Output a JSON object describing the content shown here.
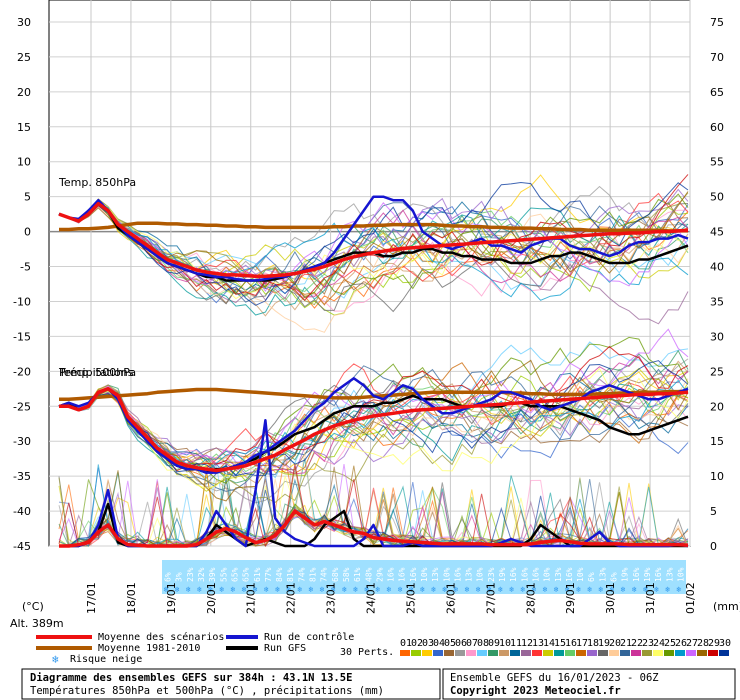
{
  "chart_data": {
    "type": "line",
    "title": "Diagramme des ensembles GEFS sur 384h : 43.1N 13.5E",
    "subtitle": "Températures 850hPa et 500hPa (°C) , précipitations (mm)",
    "left_axis": {
      "unit": "(°C)",
      "min": -45,
      "max": 30,
      "ticks": [
        "30",
        "25",
        "20",
        "15",
        "10",
        "5",
        "0",
        "-5",
        "-10",
        "-15",
        "-20",
        "-25",
        "-30",
        "-35",
        "-40",
        "-45"
      ]
    },
    "right_axis": {
      "unit": "(mm)",
      "min": 0,
      "max": 75,
      "ticks": [
        "75",
        "70",
        "65",
        "60",
        "55",
        "50",
        "45",
        "40",
        "35",
        "30",
        "25",
        "20",
        "15",
        "10",
        "5",
        "0"
      ]
    },
    "altitude": "Alt. 389m",
    "x_axis": {
      "start_hours_before_first_label": 0,
      "dates": [
        "17/01",
        "18/01",
        "19/01",
        "20/01",
        "21/01",
        "22/01",
        "23/01",
        "24/01",
        "25/01",
        "26/01",
        "27/01",
        "28/01",
        "29/01",
        "30/01",
        "31/01",
        "01/02"
      ]
    },
    "annotations": {
      "t850": "Temp. 850hPa",
      "t500": "Temp. 500hPa",
      "precip": "Précipitations"
    },
    "snow_risk_percent": [
      "6%",
      "3%",
      "23%",
      "32%",
      "39%",
      "55%",
      "65%",
      "65%",
      "61%",
      "77%",
      "84%",
      "81%",
      "74%",
      "81%",
      "74%",
      "68%",
      "58%",
      "61%",
      "48%",
      "29%",
      "16%",
      "16%",
      "16%",
      "10%",
      "13%",
      "10%",
      "16%",
      "13%",
      "10%",
      "23%",
      "19%",
      "16%",
      "16%",
      "16%",
      "10%",
      "13%",
      "16%",
      "10%",
      "6%",
      "13%",
      "6%",
      "19%",
      "16%",
      "19%",
      "16%",
      "13%",
      "10%"
    ],
    "series": [
      {
        "name": "Moyenne des scénarios",
        "color": "#ee1111",
        "t850": [
          2.5,
          2,
          1.5,
          2.5,
          4,
          3,
          1,
          0,
          -1,
          -2,
          -3,
          -4,
          -4.5,
          -5,
          -5.5,
          -5.8,
          -6,
          -6.2,
          -6.2,
          -6.3,
          -6.4,
          -6.4,
          -6.3,
          -6.2,
          -6,
          -5.7,
          -5.4,
          -5,
          -4.5,
          -4,
          -3.6,
          -3.3,
          -3,
          -2.8,
          -2.6,
          -2.4,
          -2.3,
          -2.2,
          -2.1,
          -2,
          -1.9,
          -1.8,
          -1.7,
          -1.6,
          -1.5,
          -1.4,
          -1.3,
          -1.2,
          -1.1,
          -1,
          -0.9,
          -0.8,
          -0.7,
          -0.6,
          -0.5,
          -0.4,
          -0.3,
          -0.3,
          -0.2,
          -0.2,
          -0.1,
          0,
          0,
          0.1,
          0.2
        ],
        "t500": [
          -25,
          -25,
          -25.5,
          -25,
          -23,
          -22.5,
          -23.5,
          -26.5,
          -28,
          -29.5,
          -31,
          -32,
          -33,
          -33.5,
          -33.8,
          -34,
          -34.2,
          -34,
          -33.8,
          -33.5,
          -33,
          -32.5,
          -32,
          -31.2,
          -30.5,
          -29.8,
          -29,
          -28.4,
          -27.8,
          -27.4,
          -27,
          -26.7,
          -26.4,
          -26.2,
          -26,
          -25.8,
          -25.6,
          -25.5,
          -25.4,
          -25.3,
          -25.2,
          -25.1,
          -25,
          -24.9,
          -24.8,
          -24.7,
          -24.6,
          -24.5,
          -24.4,
          -24.3,
          -24.2,
          -24.1,
          -24,
          -23.9,
          -23.8,
          -23.7,
          -23.6,
          -23.5,
          -23.4,
          -23.3,
          -23.3,
          -23.2,
          -23.2,
          -23.1,
          -23
        ],
        "precip_mm": [
          0,
          0,
          0.2,
          0.5,
          2,
          3,
          1,
          0.2,
          0.1,
          0,
          0,
          0,
          0,
          0,
          0.2,
          1,
          2,
          2.5,
          2,
          1.2,
          0.5,
          0.8,
          1.5,
          3,
          5,
          4,
          3,
          3.5,
          3,
          2.5,
          2,
          1.8,
          1.2,
          1,
          0.8,
          0.7,
          0.6,
          0.5,
          0.4,
          0.3,
          0.3,
          0.3,
          0.3,
          0.3,
          0.2,
          0.2,
          0.2,
          0.2,
          0.3,
          0.5,
          0.7,
          0.8,
          0.6,
          0.4,
          0.3,
          0.3,
          0.3,
          0.3,
          0.2,
          0.2,
          0.2,
          0.2,
          0.2,
          0.2,
          0.1
        ]
      },
      {
        "name": "Moyenne 1981-2010",
        "color": "#b05a00",
        "t850": [
          0.3,
          0.3,
          0.4,
          0.4,
          0.5,
          0.6,
          0.8,
          1,
          1.2,
          1.2,
          1.2,
          1.1,
          1.1,
          1,
          1,
          0.9,
          0.9,
          0.8,
          0.8,
          0.7,
          0.7,
          0.6,
          0.6,
          0.6,
          0.6,
          0.6,
          0.6,
          0.6,
          0.7,
          0.7,
          0.8,
          0.8,
          0.9,
          0.9,
          1,
          1,
          1,
          1,
          1,
          0.9,
          0.8,
          0.8,
          0.7,
          0.7,
          0.6,
          0.6,
          0.5,
          0.5,
          0.5,
          0.4,
          0.4,
          0.3,
          0.3,
          0.3,
          0.2,
          0.2,
          0.2,
          0.2,
          0.2,
          0.2,
          0.2,
          0.2,
          0.1,
          0.1,
          0.1
        ],
        "t500": [
          -24,
          -24,
          -23.9,
          -23.8,
          -23.7,
          -23.6,
          -23.5,
          -23.4,
          -23.3,
          -23.2,
          -23,
          -22.9,
          -22.8,
          -22.7,
          -22.6,
          -22.6,
          -22.6,
          -22.7,
          -22.8,
          -22.9,
          -23,
          -23.1,
          -23.2,
          -23.3,
          -23.4,
          -23.5,
          -23.6,
          -23.7,
          -23.8,
          -23.8,
          -23.8,
          -23.7,
          -23.6,
          -23.5,
          -23.4,
          -23.3,
          -23.2,
          -23.1,
          -23,
          -23,
          -23,
          -23,
          -23,
          -23,
          -23,
          -23,
          -23.1,
          -23.1,
          -23.2,
          -23.2,
          -23.3,
          -23.3,
          -23.3,
          -23.3,
          -23.3,
          -23.2,
          -23.2,
          -23.1,
          -23.1,
          -23,
          -23,
          -23,
          -22.9,
          -22.9,
          -22.8
        ],
        "precip_mm": []
      },
      {
        "name": "Run de contrôle",
        "color": "#1515d0",
        "t850": [
          2.5,
          2,
          1.8,
          3,
          4.5,
          3,
          1,
          -0.5,
          -1.5,
          -2.5,
          -3.5,
          -4.5,
          -5,
          -5.5,
          -6,
          -6.2,
          -6.5,
          -6.5,
          -6.8,
          -7,
          -7,
          -6.8,
          -6.5,
          -6.5,
          -6,
          -5.5,
          -5,
          -4.5,
          -3,
          -1,
          1,
          3,
          5,
          5,
          4.5,
          4.5,
          3,
          0,
          -1,
          -2,
          -2.5,
          -2,
          -1.5,
          -1,
          -2,
          -2,
          -2.5,
          -3,
          -2,
          -1.5,
          -1,
          -1,
          -2,
          -2.5,
          -2.5,
          -3,
          -3.5,
          -3,
          -2,
          -1.5,
          -1.5,
          -1,
          -1,
          -0.5,
          -1
        ],
        "t500": [
          -25,
          -24.5,
          -25,
          -24.5,
          -23,
          -22.5,
          -24,
          -27,
          -28.5,
          -30,
          -31.5,
          -32.5,
          -33.5,
          -34,
          -34,
          -34.5,
          -34.5,
          -34,
          -33.5,
          -33,
          -32,
          -31.5,
          -30.5,
          -29.5,
          -28.5,
          -27,
          -25.5,
          -24.5,
          -23,
          -22,
          -21,
          -22,
          -23.5,
          -24,
          -23,
          -22,
          -22.5,
          -24,
          -25,
          -26,
          -26,
          -25.5,
          -25,
          -24.5,
          -24,
          -23,
          -23,
          -23.5,
          -24,
          -25,
          -25.5,
          -25,
          -24.5,
          -24,
          -23,
          -22.5,
          -22,
          -22.5,
          -23,
          -23.5,
          -24,
          -24,
          -23.5,
          -23,
          -22.5
        ],
        "precip_mm": [
          0,
          0,
          0,
          0.5,
          3,
          8,
          1,
          0,
          0,
          0,
          0,
          0,
          0,
          0,
          0,
          2,
          5,
          3,
          1,
          0,
          8,
          18,
          4,
          2,
          1,
          0.5,
          0,
          0,
          0,
          0,
          0,
          1,
          3,
          0,
          0,
          0,
          0.5,
          0,
          0,
          0,
          0,
          0,
          0,
          0,
          0,
          0.5,
          1,
          0.5,
          0,
          0,
          0,
          0,
          0,
          0,
          1,
          2,
          0.5,
          0,
          0,
          0,
          0,
          0,
          0,
          0.2,
          0
        ]
      },
      {
        "name": "Run GFS",
        "color": "#000000",
        "t850": [
          2.5,
          2,
          1.5,
          3,
          4,
          3,
          0.5,
          -0.5,
          -1.5,
          -2.5,
          -3.5,
          -4.5,
          -5,
          -5.5,
          -6,
          -6.5,
          -6.5,
          -7,
          -7,
          -7,
          -7,
          -7,
          -6.8,
          -6.5,
          -6,
          -5.5,
          -5,
          -4.5,
          -4,
          -3.5,
          -3,
          -3,
          -3,
          -3.5,
          -3.5,
          -3,
          -3,
          -2.5,
          -2.5,
          -3,
          -3,
          -3.5,
          -3.5,
          -4,
          -4,
          -4,
          -4.5,
          -4.5,
          -4.5,
          -4,
          -3.5,
          -3.5,
          -3,
          -3,
          -3.5,
          -4,
          -4.5,
          -4.5,
          -4.5,
          -4,
          -4,
          -3.5,
          -3,
          -2.5,
          -2
        ],
        "t500": [
          -25,
          -24.5,
          -25.5,
          -25,
          -23,
          -22.5,
          -23.5,
          -27,
          -28.5,
          -30,
          -31.5,
          -32.5,
          -33.5,
          -34,
          -34,
          -34.5,
          -34,
          -34,
          -33.5,
          -33,
          -32.5,
          -31.5,
          -31,
          -30,
          -29,
          -28.5,
          -28,
          -27,
          -26,
          -25.5,
          -25,
          -25,
          -25,
          -24.5,
          -24.5,
          -24,
          -23.5,
          -24,
          -24,
          -24,
          -24.5,
          -25,
          -25,
          -25,
          -25,
          -25,
          -24.5,
          -24.5,
          -25,
          -25,
          -25,
          -25,
          -25.5,
          -26,
          -26.5,
          -27,
          -28,
          -28.5,
          -29,
          -29,
          -28.5,
          -28,
          -27.5,
          -27,
          -26.5
        ],
        "precip_mm": [
          0,
          0,
          0,
          0.5,
          2,
          6,
          0.5,
          0,
          0,
          0,
          0,
          0,
          0,
          0,
          0,
          1,
          3,
          2,
          1,
          0,
          0.5,
          1,
          0.5,
          0,
          0,
          0,
          1,
          3,
          4,
          5,
          1,
          0,
          0,
          0,
          0,
          0,
          0,
          0,
          0,
          0,
          0,
          0,
          0,
          0,
          0,
          0,
          0,
          0,
          1,
          3,
          2,
          1,
          0,
          0,
          0,
          0,
          0,
          0,
          0,
          0,
          0,
          0,
          0,
          0,
          0
        ]
      }
    ],
    "legend": {
      "entries": [
        "Moyenne des scénarios",
        "Run de contrôle",
        "Moyenne 1981-2010",
        "Run GFS",
        "Risque neige"
      ],
      "perts_label": "30 Perts.",
      "perts": [
        "01",
        "02",
        "03",
        "04",
        "05",
        "06",
        "07",
        "08",
        "09",
        "10",
        "11",
        "12",
        "13",
        "14",
        "15",
        "16",
        "17",
        "18",
        "19",
        "20",
        "21",
        "22",
        "23",
        "24",
        "25",
        "26",
        "27",
        "28",
        "29",
        "30"
      ],
      "pert_colors": [
        "#ff6600",
        "#99cc00",
        "#ffcc00",
        "#3366cc",
        "#996633",
        "#999999",
        "#ff99cc",
        "#66ccff",
        "#339966",
        "#cc9966",
        "#006699",
        "#996699",
        "#ff3333",
        "#cccc00",
        "#009999",
        "#66cc66",
        "#cc6600",
        "#9966cc",
        "#666666",
        "#ffcc99",
        "#336699",
        "#cc3399",
        "#999933",
        "#ffff66",
        "#669900",
        "#0099cc",
        "#cc66ff",
        "#996600",
        "#cc0000",
        "#003399"
      ]
    },
    "footer": {
      "title": "Diagramme des ensembles GEFS sur 384h : 43.1N 13.5E",
      "subtitle": "Températures 850hPa et 500hPa (°C) , précipitations (mm)",
      "run": "Ensemble GEFS du 16/01/2023 - 06Z",
      "copyright": "Copyright 2023 Meteociel.fr"
    },
    "grid": true
  }
}
